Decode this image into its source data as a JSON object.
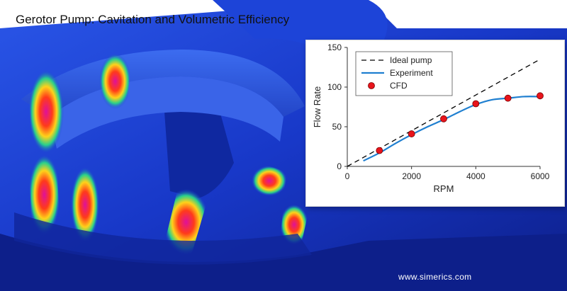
{
  "title": "Gerotor Pump: Cavitation and Volumetric Efficiency",
  "watermark": "www.simerics.com",
  "colors": {
    "rotor_base": "#1a3fd6",
    "rotor_dark": "#0d1f8a",
    "cavitation_hot": "#e0109a",
    "cavitation_warm": "#ff3b1a",
    "ideal_line": "#000000",
    "experiment_line": "#1f7fd0",
    "cfd_marker": "#e8141c"
  },
  "icons": [
    "rotor-illustration"
  ],
  "chart_data": {
    "type": "line",
    "xlabel": "RPM",
    "ylabel": "Flow Rate",
    "xlim": [
      0,
      6000
    ],
    "ylim": [
      0,
      150
    ],
    "x_ticks": [
      "0",
      "2000",
      "4000",
      "6000"
    ],
    "y_ticks": [
      "0",
      "50",
      "100",
      "150"
    ],
    "grid": false,
    "legend_position": "top-left",
    "series": [
      {
        "name": "Ideal pump",
        "style": "dashed",
        "x": [
          0,
          6000
        ],
        "y": [
          0,
          135
        ]
      },
      {
        "name": "Experiment",
        "style": "solid",
        "x": [
          500,
          1000,
          1500,
          2000,
          2500,
          3000,
          3500,
          4000,
          4500,
          5000,
          5500,
          6000
        ],
        "y": [
          7,
          17,
          29,
          40,
          50,
          59,
          69,
          78,
          84,
          86,
          88,
          88
        ]
      },
      {
        "name": "CFD",
        "style": "marker",
        "x": [
          1000,
          2000,
          3000,
          4000,
          5000,
          6000
        ],
        "y": [
          20,
          41,
          60,
          79,
          86,
          89
        ]
      }
    ]
  }
}
